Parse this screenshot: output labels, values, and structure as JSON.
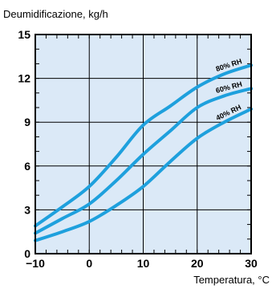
{
  "chart_data": {
    "type": "line",
    "ylabel": "Deumidificazione, kg/h",
    "xlabel": "Temperatura, °C",
    "xlim": [
      -10,
      30
    ],
    "ylim": [
      0,
      15
    ],
    "x_ticks": [
      "−10",
      "0",
      "10",
      "20",
      "30"
    ],
    "x_tick_values": [
      -10,
      0,
      10,
      20,
      30
    ],
    "y_ticks": [
      "0",
      "3",
      "6",
      "9",
      "12",
      "15"
    ],
    "y_tick_values": [
      0,
      3,
      6,
      9,
      12,
      15
    ],
    "grid": true,
    "colors": {
      "plot_background": "#dbe9f7",
      "line": "#1ea0dd",
      "grid": "#000000",
      "axis": "#000000"
    },
    "series": [
      {
        "name": "80% RH",
        "x": [
          -10,
          -5,
          0,
          5,
          10,
          15,
          20,
          25,
          30
        ],
        "y": [
          1.9,
          3.2,
          4.6,
          6.6,
          8.8,
          10.1,
          11.4,
          12.3,
          12.9
        ]
      },
      {
        "name": "60% RH",
        "x": [
          -10,
          -5,
          0,
          5,
          10,
          15,
          20,
          25,
          30
        ],
        "y": [
          1.4,
          2.4,
          3.4,
          5.0,
          6.8,
          8.4,
          10.0,
          10.8,
          11.3
        ]
      },
      {
        "name": "40% RH",
        "x": [
          -10,
          -5,
          0,
          5,
          10,
          15,
          20,
          25,
          30
        ],
        "y": [
          0.9,
          1.5,
          2.2,
          3.3,
          4.6,
          6.3,
          7.9,
          9.0,
          9.9
        ]
      }
    ]
  }
}
